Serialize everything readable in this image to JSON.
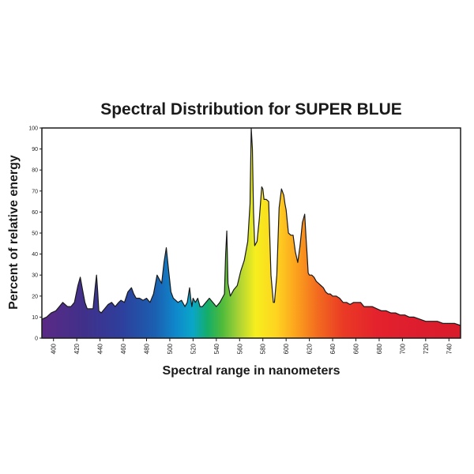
{
  "chart_data": {
    "type": "area",
    "title": "Spectral Distribution for SUPER BLUE",
    "xlabel": "Spectral range in nanometers",
    "ylabel": "Percent of relative energy",
    "xlim": [
      390,
      750
    ],
    "ylim": [
      0,
      100
    ],
    "x_ticks": [
      400,
      420,
      440,
      460,
      480,
      500,
      520,
      540,
      560,
      580,
      600,
      620,
      640,
      660,
      680,
      700,
      720,
      740
    ],
    "y_ticks": [
      0,
      10,
      20,
      30,
      40,
      50,
      60,
      70,
      80,
      90,
      100
    ],
    "fill": "visible-spectrum gradient",
    "series": [
      {
        "x": [
          390,
          394,
          398,
          402,
          405,
          408,
          412,
          415,
          418,
          421,
          423,
          425,
          427,
          429,
          431,
          434,
          436,
          437,
          438,
          439,
          441,
          444,
          447,
          450,
          453,
          456,
          458,
          461,
          464,
          467,
          469,
          471,
          474,
          477,
          480,
          483,
          486,
          489,
          491,
          493,
          495,
          497,
          499,
          501,
          503,
          505,
          507,
          510,
          513,
          515,
          517,
          518,
          519,
          520,
          522,
          524,
          526,
          528,
          531,
          534,
          537,
          540,
          543,
          545,
          547,
          548,
          549,
          550,
          552,
          555,
          558,
          561,
          564,
          567,
          569,
          570,
          571,
          572,
          573,
          575,
          577,
          579,
          580,
          581,
          583,
          585,
          587,
          589,
          590,
          592,
          594,
          596,
          598,
          599,
          600,
          602,
          604,
          606,
          608,
          610,
          612,
          614,
          616,
          617,
          618,
          619,
          620,
          622,
          624,
          626,
          628,
          630,
          632,
          634,
          636,
          638,
          640,
          643,
          646,
          649,
          652,
          655,
          658,
          661,
          664,
          667,
          670,
          674,
          678,
          682,
          686,
          690,
          694,
          698,
          702,
          706,
          710,
          715,
          720,
          725,
          730,
          735,
          740,
          745,
          750
        ],
        "y": [
          9,
          10,
          12,
          13,
          15,
          17,
          15,
          15,
          17,
          25,
          29,
          23,
          17,
          14,
          14,
          14,
          25,
          30,
          22,
          13,
          12,
          14,
          16,
          17,
          15,
          17,
          18,
          17,
          22,
          24,
          21,
          19,
          19,
          18,
          19,
          17,
          21,
          30,
          28,
          26,
          36,
          43,
          32,
          22,
          19,
          18,
          17,
          18,
          15,
          17,
          24,
          19,
          15,
          19,
          17,
          19,
          15,
          15,
          17,
          19,
          17,
          15,
          17,
          19,
          21,
          40,
          51,
          26,
          20,
          23,
          25,
          32,
          37,
          46,
          64,
          100,
          90,
          60,
          44,
          46,
          57,
          72,
          71,
          66,
          66,
          65,
          30,
          17,
          17,
          30,
          62,
          71,
          68,
          64,
          61,
          50,
          49,
          49,
          41,
          36,
          44,
          55,
          59,
          49,
          40,
          31,
          30,
          30,
          29,
          27,
          26,
          25,
          24,
          22,
          21,
          21,
          20,
          20,
          19,
          17,
          17,
          16,
          17,
          17,
          17,
          15,
          15,
          15,
          14,
          13,
          13,
          12,
          12,
          11,
          11,
          10,
          10,
          9,
          8,
          8,
          8,
          7,
          7,
          7,
          6
        ]
      }
    ]
  }
}
